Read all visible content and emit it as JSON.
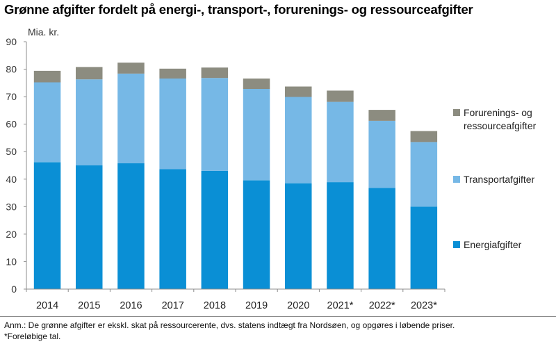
{
  "title": "Grønne afgifter fordelt på energi-, transport-, forurenings- og ressourceafgifter",
  "unit_label": "Mia. kr.",
  "notes": [
    "Anm.: De grønne afgifter er ekskl. skat på ressourcerente, dvs. statens indtægt fra Nordsøen, og opgøres i løbende priser.",
    "*Foreløbige tal."
  ],
  "chart_data": {
    "type": "bar",
    "stacked": true,
    "title": "Grønne afgifter fordelt på energi-, transport-, forurenings- og ressourceafgifter",
    "ylabel": "Mia. kr.",
    "xlabel": "",
    "ylim": [
      0,
      90
    ],
    "yticks": [
      0,
      10,
      20,
      30,
      40,
      50,
      60,
      70,
      80,
      90
    ],
    "grid": false,
    "legend_position": "right",
    "categories": [
      "2014",
      "2015",
      "2016",
      "2017",
      "2018",
      "2019",
      "2020",
      "2021*",
      "2022*",
      "2023*"
    ],
    "series": [
      {
        "name": "Energiafgifter",
        "color": "#0a8fd5",
        "values": [
          46.2,
          45.0,
          45.8,
          43.6,
          43.0,
          39.6,
          38.5,
          38.9,
          36.8,
          30.0
        ]
      },
      {
        "name": "Transportafgifter",
        "color": "#76b8e6",
        "values": [
          29.0,
          31.3,
          32.6,
          33.0,
          33.8,
          33.2,
          31.4,
          29.2,
          24.4,
          23.5
        ]
      },
      {
        "name": "Forurenings- og ressourceafgifter",
        "color": "#8c8c80",
        "values": [
          4.2,
          4.5,
          4.0,
          3.6,
          3.8,
          3.8,
          3.8,
          4.1,
          4.0,
          4.0
        ]
      }
    ],
    "legend_order": [
      2,
      1,
      0
    ]
  }
}
